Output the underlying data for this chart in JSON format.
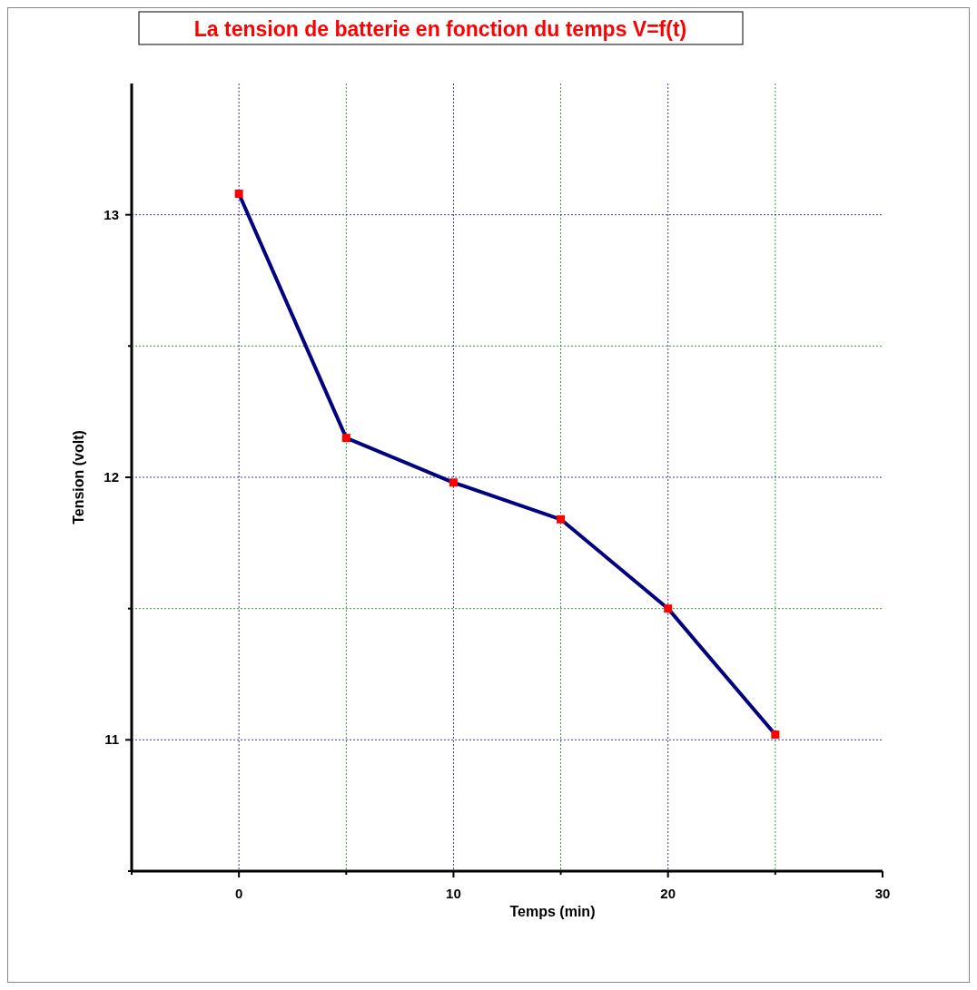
{
  "chart_data": {
    "type": "line",
    "title": "La tension de batterie en fonction du temps V=f(t)",
    "xlabel": "Temps (min)",
    "ylabel": "Tension (volt)",
    "x": [
      0,
      5,
      10,
      15,
      20,
      25
    ],
    "series": [
      {
        "color": "#000080",
        "colors": [
          "#ff0000",
          "#ff0000",
          "#ff0000",
          "#ff0000",
          "#ff0000",
          "#ff0000"
        ],
        "values": [
          13.08,
          12.15,
          11.98,
          11.84,
          11.5,
          11.02
        ]
      }
    ],
    "xlim": [
      -5,
      30
    ],
    "xticks": [
      {
        "value": -5,
        "label": null
      },
      0,
      {
        "value": 5,
        "label": null
      },
      10,
      {
        "value": 15,
        "label": null
      },
      20,
      {
        "value": 25,
        "label": null
      },
      30
    ],
    "ylim": [
      10.5,
      13.5
    ],
    "yticks": [
      {
        "value": 10.5,
        "label": null
      },
      11,
      {
        "value": 11.5,
        "label": null
      },
      12,
      {
        "value": 12.5,
        "label": null
      },
      13
    ],
    "grid": true,
    "marker": "square",
    "line_style": "solid"
  }
}
